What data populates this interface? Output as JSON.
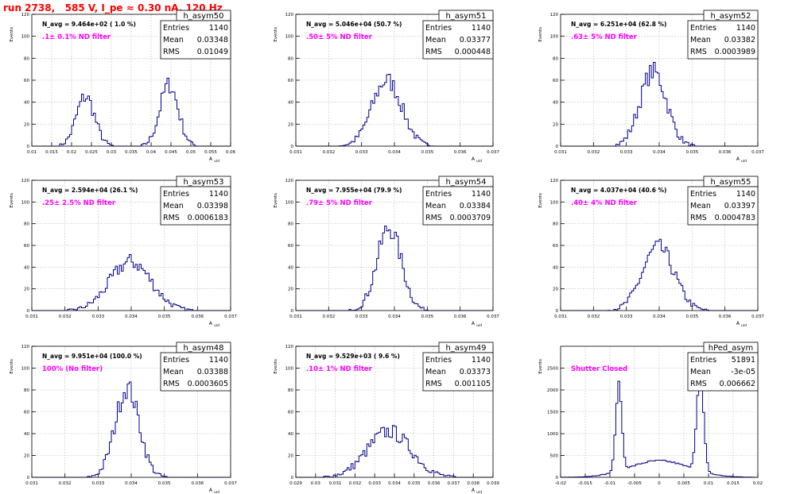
{
  "page": {
    "title": "run 2738,   585 V, I_pe ≈ 0.30 nA, 120 Hz"
  },
  "colors": {
    "title": "#ff0000",
    "histogram_line": "#00008b",
    "annotation": "#ff00ff",
    "grid": "#b0b0b0",
    "axis": "#000000"
  },
  "chart_data": [
    {
      "type": "histogram",
      "name": "h_asym50",
      "stats": {
        "entries_label": "Entries",
        "entries": "1140",
        "mean_label": "Mean",
        "mean": "0.03348",
        "rms_label": "RMS",
        "rms": "0.01049"
      },
      "navg": "N_avg = 9.464e+02 ( 1.0 %)",
      "filter": ".1± 0.1% ND filter",
      "ylabel": "Events",
      "xlabel": "A_uid",
      "xlim": [
        0.01,
        0.06
      ],
      "ylim": [
        0,
        120
      ],
      "xticks": [
        0.01,
        0.015,
        0.02,
        0.025,
        0.03,
        0.035,
        0.04,
        0.045,
        0.05,
        0.055,
        0.06
      ],
      "yticks": [
        0,
        20,
        40,
        60,
        80,
        100,
        120
      ],
      "peaks": [
        {
          "center": 0.0235,
          "sigma": 0.0023,
          "height": 45
        },
        {
          "center": 0.0445,
          "sigma": 0.0023,
          "height": 56
        }
      ],
      "nbins": 100
    },
    {
      "type": "histogram",
      "name": "h_asym51",
      "stats": {
        "entries_label": "Entries",
        "entries": "1140",
        "mean_label": "Mean",
        "mean": "0.03377",
        "rms_label": "RMS",
        "rms": "0.000448"
      },
      "navg": "N_avg = 5.046e+04 (50.7 %)",
      "filter": ".50± 5% ND filter",
      "ylabel": "Events",
      "xlabel": "A_uid",
      "xlim": [
        0.031,
        0.037
      ],
      "ylim": [
        0,
        120
      ],
      "xticks": [
        0.031,
        0.032,
        0.033,
        0.034,
        0.035,
        0.036,
        0.037
      ],
      "yticks": [
        0,
        20,
        40,
        60,
        80,
        100,
        120
      ],
      "peaks": [
        {
          "center": 0.03377,
          "sigma": 0.00045,
          "height": 60
        }
      ],
      "nbins": 100
    },
    {
      "type": "histogram",
      "name": "h_asym52",
      "stats": {
        "entries_label": "Entries",
        "entries": "1140",
        "mean_label": "Mean",
        "mean": "0.03382",
        "rms_label": "RMS",
        "rms": "0.0003989"
      },
      "navg": "N_avg = 6.251e+04 (62.8 %)",
      "filter": ".63± 5% ND filter",
      "ylabel": "Events",
      "xlabel": "A_uid",
      "xlim": [
        0.031,
        0.037
      ],
      "ylim": [
        0,
        120
      ],
      "xticks": [
        0.031,
        0.032,
        0.033,
        0.034,
        0.035,
        0.036,
        0.037
      ],
      "yticks": [
        0,
        20,
        40,
        60,
        80,
        100,
        120
      ],
      "peaks": [
        {
          "center": 0.03382,
          "sigma": 0.0004,
          "height": 68
        }
      ],
      "nbins": 100
    },
    {
      "type": "histogram",
      "name": "h_asym53",
      "stats": {
        "entries_label": "Entries",
        "entries": "1140",
        "mean_label": "Mean",
        "mean": "0.03398",
        "rms_label": "RMS",
        "rms": "0.0006183"
      },
      "navg": "N_avg = 2.594e+04 (26.1 %)",
      "filter": ".25± 2.5% ND filter",
      "ylabel": "Events",
      "xlabel": "A_uid",
      "xlim": [
        0.031,
        0.037
      ],
      "ylim": [
        0,
        120
      ],
      "xticks": [
        0.031,
        0.032,
        0.033,
        0.034,
        0.035,
        0.036,
        0.037
      ],
      "yticks": [
        0,
        20,
        40,
        60,
        80,
        100,
        120
      ],
      "peaks": [
        {
          "center": 0.03398,
          "sigma": 0.00062,
          "height": 45
        }
      ],
      "nbins": 100
    },
    {
      "type": "histogram",
      "name": "h_asym54",
      "stats": {
        "entries_label": "Entries",
        "entries": "1140",
        "mean_label": "Mean",
        "mean": "0.03384",
        "rms_label": "RMS",
        "rms": "0.0003709"
      },
      "navg": "N_avg = 7.955e+04 (79.9 %)",
      "filter": ".79± 5% ND filter",
      "ylabel": "Events",
      "xlabel": "A_uid",
      "xlim": [
        0.031,
        0.037
      ],
      "ylim": [
        0,
        120
      ],
      "xticks": [
        0.031,
        0.032,
        0.033,
        0.034,
        0.035,
        0.036,
        0.037
      ],
      "yticks": [
        0,
        20,
        40,
        60,
        80,
        100,
        120
      ],
      "peaks": [
        {
          "center": 0.03384,
          "sigma": 0.00037,
          "height": 76
        }
      ],
      "nbins": 100
    },
    {
      "type": "histogram",
      "name": "h_asym55",
      "stats": {
        "entries_label": "Entries",
        "entries": "1140",
        "mean_label": "Mean",
        "mean": "0.03397",
        "rms_label": "RMS",
        "rms": "0.0004783"
      },
      "navg": "N_avg = 4.037e+04 (40.6 %)",
      "filter": ".40± 4% ND filter",
      "ylabel": "Events",
      "xlabel": "A_uid",
      "xlim": [
        0.031,
        0.037
      ],
      "ylim": [
        0,
        120
      ],
      "xticks": [
        0.031,
        0.032,
        0.033,
        0.034,
        0.035,
        0.036,
        0.037
      ],
      "yticks": [
        0,
        20,
        40,
        60,
        80,
        100,
        120
      ],
      "peaks": [
        {
          "center": 0.03397,
          "sigma": 0.00048,
          "height": 58
        }
      ],
      "nbins": 100
    },
    {
      "type": "histogram",
      "name": "h_asym48",
      "stats": {
        "entries_label": "Entries",
        "entries": "1140",
        "mean_label": "Mean",
        "mean": "0.03388",
        "rms_label": "RMS",
        "rms": "0.0003605"
      },
      "navg": "N_avg = 9.951e+04 (100.0 %)",
      "filter": "100% (No filter)",
      "ylabel": "Events",
      "xlabel": "A_uid",
      "xlim": [
        0.031,
        0.037
      ],
      "ylim": [
        0,
        120
      ],
      "xticks": [
        0.031,
        0.032,
        0.033,
        0.034,
        0.035,
        0.036,
        0.037
      ],
      "yticks": [
        0,
        20,
        40,
        60,
        80,
        100,
        120
      ],
      "peaks": [
        {
          "center": 0.03388,
          "sigma": 0.00036,
          "height": 82
        }
      ],
      "nbins": 100
    },
    {
      "type": "histogram",
      "name": "h_asym49",
      "stats": {
        "entries_label": "Entries",
        "entries": "1140",
        "mean_label": "Mean",
        "mean": "0.03373",
        "rms_label": "RMS",
        "rms": "0.001105"
      },
      "navg": "N_avg = 9.529e+03 ( 9.6 %)",
      "filter": ".10± 1% ND filter",
      "ylabel": "Events",
      "xlabel": "A_uid",
      "xlim": [
        0.029,
        0.039
      ],
      "ylim": [
        0,
        120
      ],
      "xticks": [
        0.029,
        0.03,
        0.031,
        0.032,
        0.033,
        0.034,
        0.035,
        0.036,
        0.037,
        0.038,
        0.039
      ],
      "yticks": [
        0,
        20,
        40,
        60,
        80,
        100,
        120
      ],
      "peaks": [
        {
          "center": 0.03373,
          "sigma": 0.0011,
          "height": 42
        }
      ],
      "nbins": 100
    },
    {
      "type": "histogram",
      "name": "hPed_asym",
      "stats": {
        "entries_label": "Entries",
        "entries": "51891",
        "mean_label": "Mean",
        "mean": "-3e-05",
        "rms_label": "RMS",
        "rms": "0.006662"
      },
      "navg": "",
      "filter": "Shutter Closed",
      "ylabel": "Events",
      "xlabel": "",
      "xlim": [
        -0.02,
        0.02
      ],
      "ylim": [
        0,
        3000
      ],
      "xticks": [
        -0.02,
        -0.015,
        -0.01,
        -0.005,
        0,
        0.005,
        0.01,
        0.015,
        0.02
      ],
      "yticks": [
        0,
        500,
        1000,
        1500,
        2000,
        2500
      ],
      "peaks": [
        {
          "center": -0.0082,
          "sigma": 0.0006,
          "height": 2000
        },
        {
          "center": 0.0083,
          "sigma": 0.0007,
          "height": 2200
        },
        {
          "center": 0,
          "sigma": 0.006,
          "height": 380
        }
      ],
      "nbins": 100
    }
  ]
}
